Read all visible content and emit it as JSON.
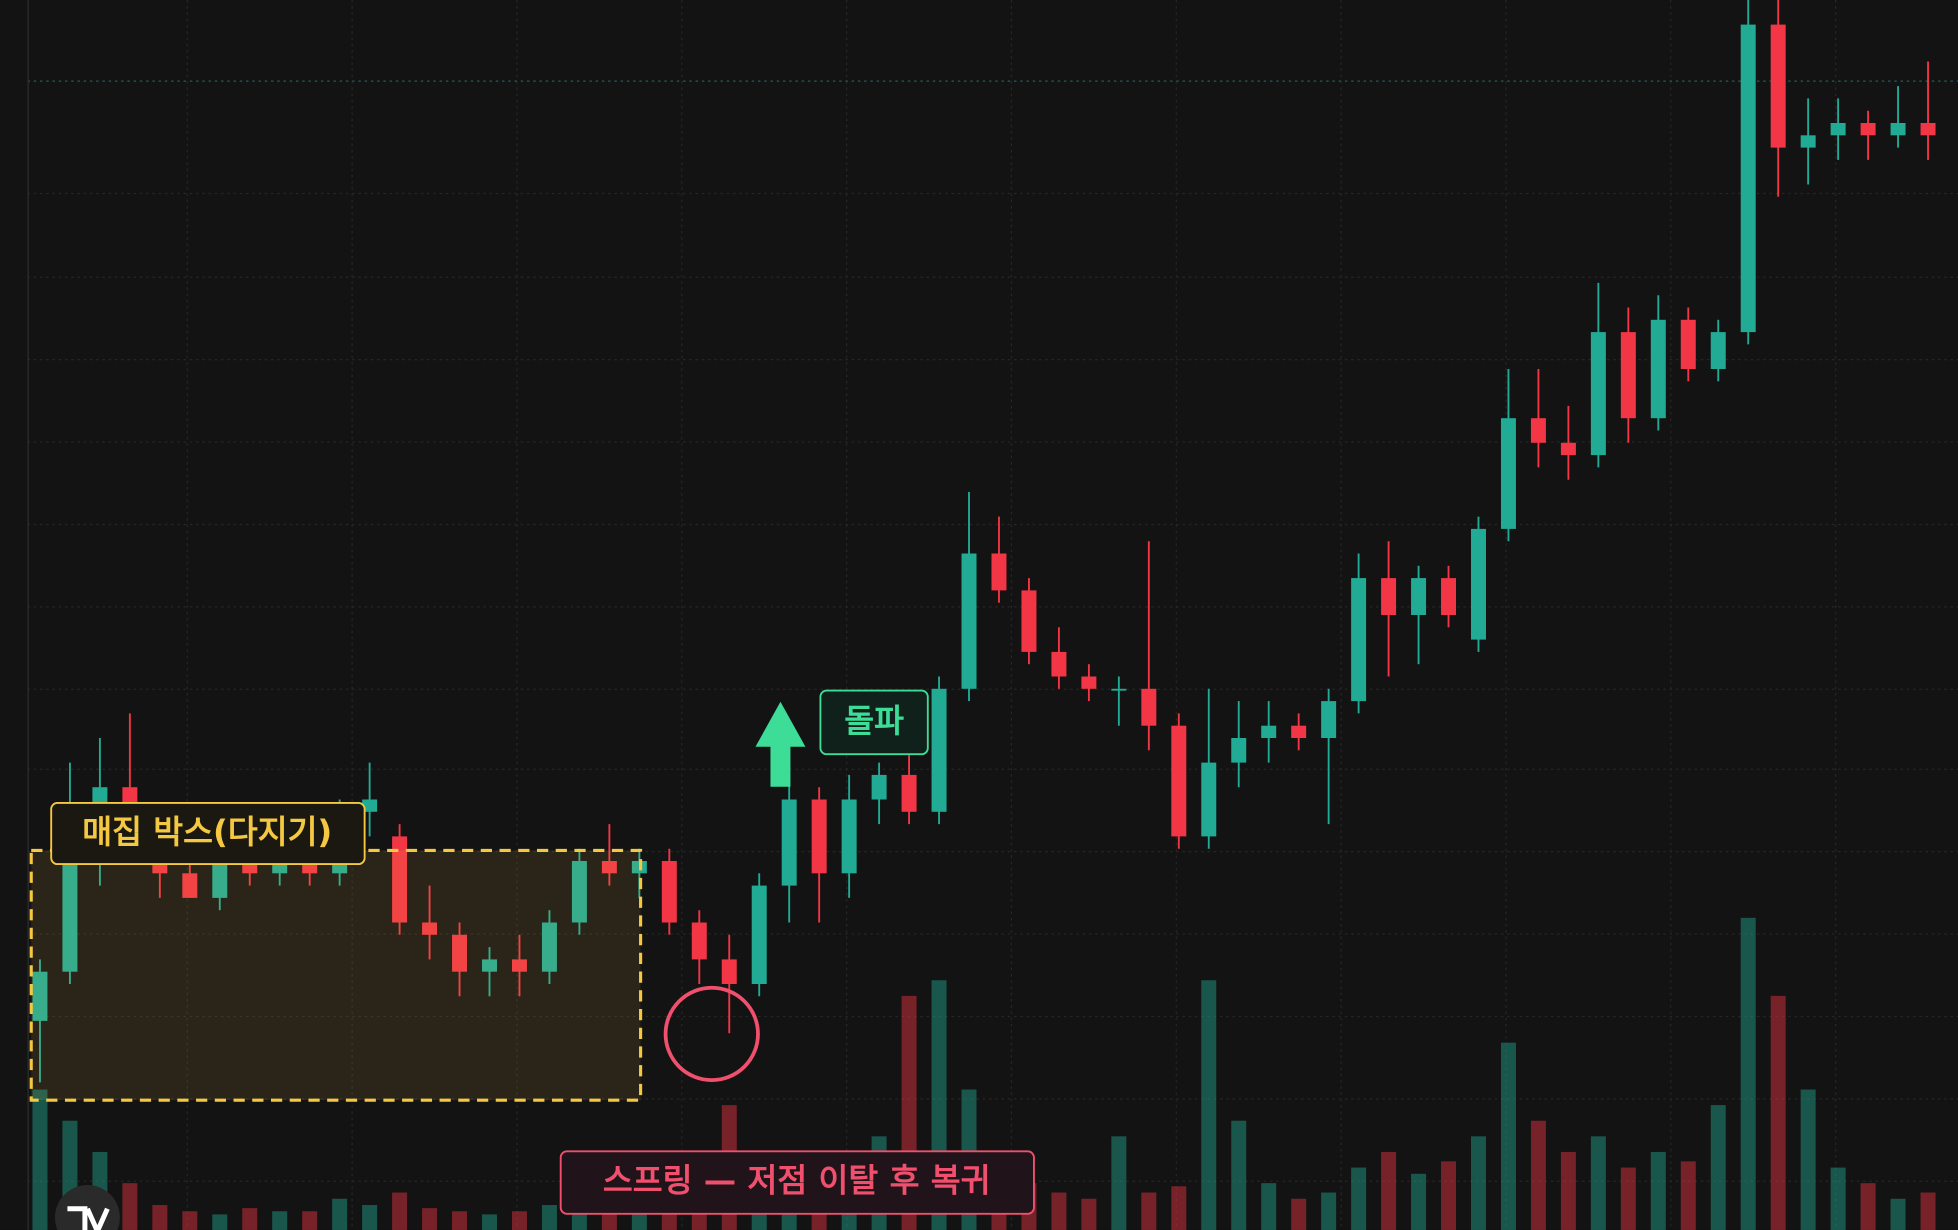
{
  "chart_data": {
    "type": "candlestick",
    "ylim": [
      0,
      100
    ],
    "vlim": [
      0,
      100
    ],
    "up_color": "#22ab94",
    "down_color": "#f23645",
    "open": [
      17,
      21,
      30,
      36,
      31,
      29,
      27,
      30,
      29,
      30,
      29,
      34,
      32,
      25,
      24,
      21,
      22,
      21,
      25,
      30,
      29,
      30,
      25,
      22,
      20,
      28,
      35,
      29,
      35,
      37,
      34,
      44,
      55,
      52,
      47,
      45,
      44,
      44,
      41,
      32,
      38,
      40,
      41,
      40,
      43,
      53,
      50,
      53,
      48,
      57,
      66,
      64,
      63,
      73,
      66,
      74,
      70,
      73,
      98,
      88,
      89,
      90,
      89,
      90
    ],
    "high": [
      22,
      38,
      40,
      42,
      33,
      31,
      31,
      31,
      31,
      32,
      35,
      38,
      33,
      28,
      25,
      23,
      24,
      26,
      31,
      33,
      31,
      31,
      26,
      24,
      29,
      37,
      36,
      37,
      38,
      40,
      45,
      60,
      58,
      53,
      49,
      46,
      45,
      56,
      42,
      44,
      43,
      43,
      42,
      44,
      55,
      56,
      54,
      54,
      58,
      70,
      70,
      67,
      77,
      75,
      76,
      75,
      74,
      100,
      100,
      92,
      92,
      91,
      93,
      95
    ],
    "low": [
      12,
      20,
      28,
      30,
      27,
      27,
      26,
      28,
      28,
      28,
      28,
      32,
      24,
      22,
      19,
      19,
      19,
      20,
      24,
      28,
      27,
      24,
      20,
      16,
      19,
      25,
      25,
      27,
      33,
      33,
      33,
      43,
      51,
      46,
      44,
      43,
      41,
      39,
      31,
      31,
      36,
      38,
      39,
      33,
      42,
      45,
      46,
      49,
      47,
      56,
      62,
      61,
      62,
      64,
      65,
      69,
      69,
      72,
      84,
      85,
      87,
      87,
      88,
      87
    ],
    "close": [
      21,
      30,
      36,
      31,
      29,
      27,
      30,
      29,
      30,
      29,
      34,
      35,
      25,
      24,
      21,
      22,
      21,
      25,
      30,
      29,
      30,
      25,
      22,
      20,
      28,
      35,
      29,
      35,
      37,
      34,
      44,
      55,
      52,
      47,
      45,
      44,
      44,
      41,
      32,
      38,
      40,
      41,
      40,
      43,
      53,
      50,
      53,
      50,
      57,
      66,
      64,
      63,
      73,
      66,
      74,
      70,
      73,
      98,
      88,
      89,
      90,
      89,
      90,
      89
    ],
    "volume": [
      45,
      35,
      25,
      15,
      8,
      6,
      5,
      7,
      6,
      6,
      10,
      8,
      12,
      7,
      6,
      5,
      6,
      8,
      10,
      6,
      7,
      9,
      12,
      40,
      25,
      20,
      15,
      18,
      30,
      75,
      80,
      45,
      20,
      15,
      12,
      10,
      30,
      12,
      14,
      80,
      35,
      15,
      10,
      12,
      20,
      25,
      18,
      22,
      30,
      60,
      35,
      25,
      30,
      20,
      25,
      22,
      40,
      100,
      75,
      45,
      20,
      15,
      10,
      12
    ],
    "annotations": [
      {
        "text": "매집 박스(다지기)",
        "color": "#f5c842"
      },
      {
        "text": "돌파",
        "color": "#3ddc97"
      },
      {
        "text": "스프링 — 저점 이탈 후 복귀",
        "color": "#f0506e"
      }
    ]
  }
}
